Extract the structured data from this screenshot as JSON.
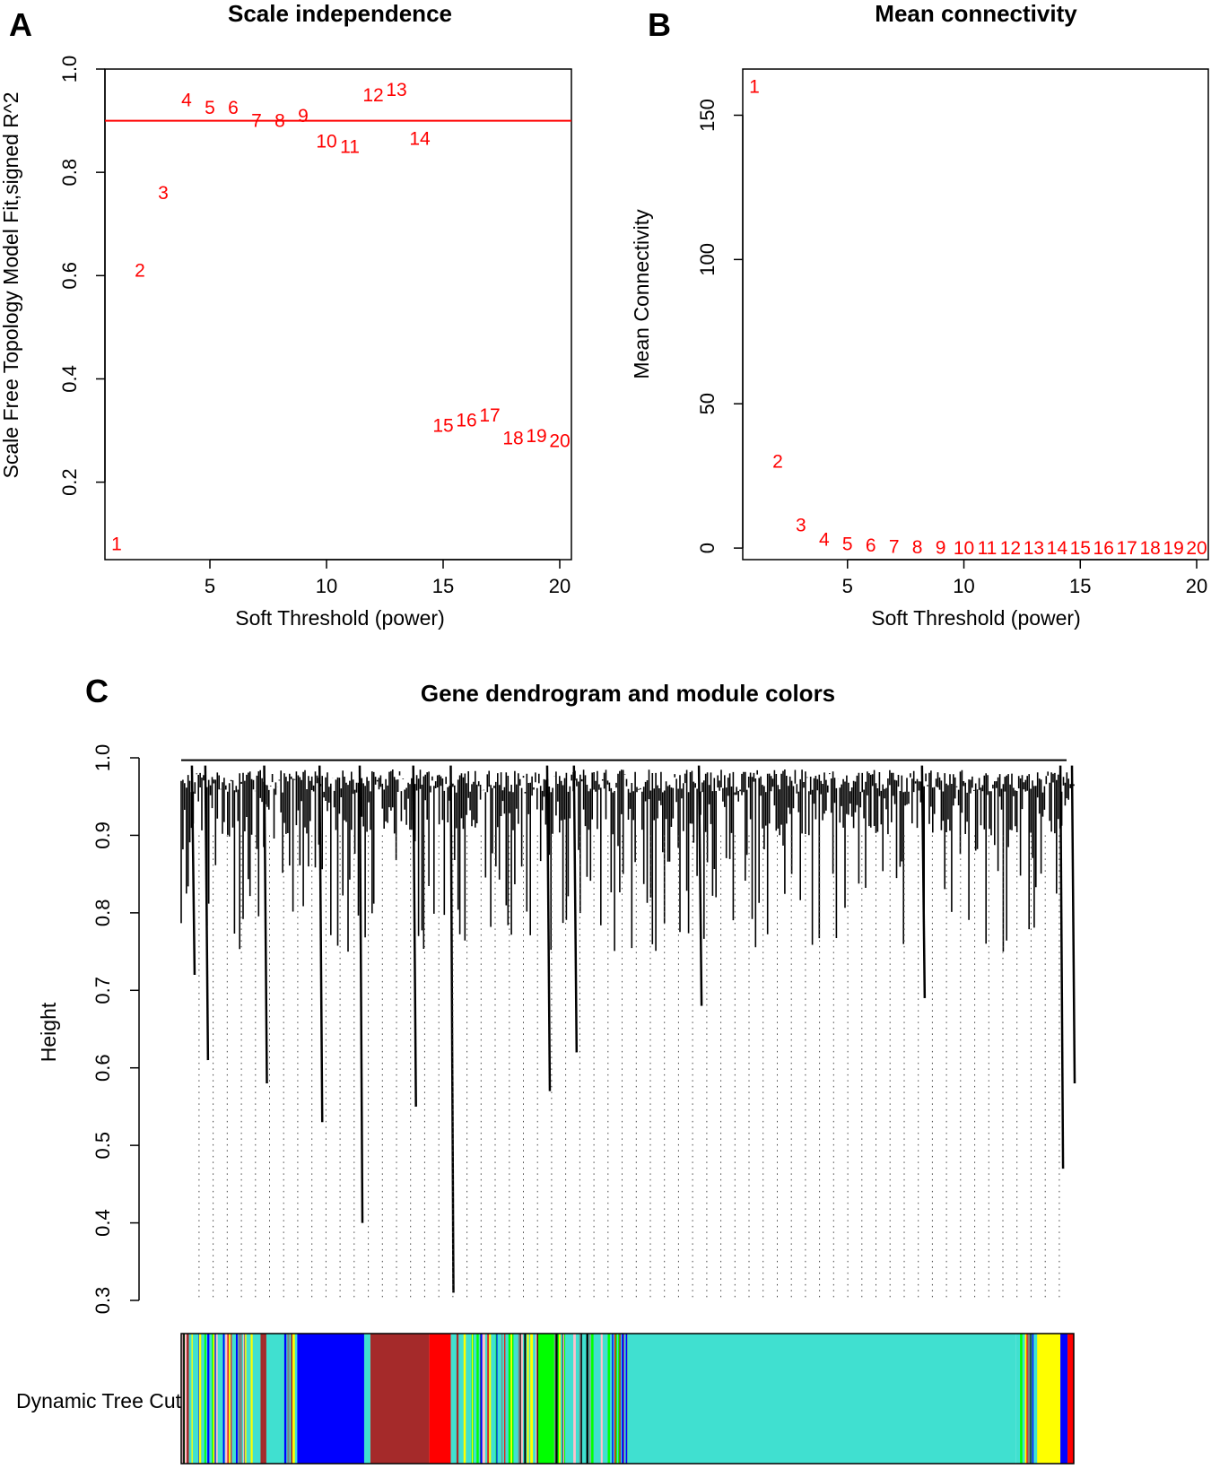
{
  "colors": {
    "points": "#ff0000",
    "cutoff_line": "#ff0000",
    "axis": "#000000"
  },
  "chart_data": [
    {
      "panel": "A",
      "type": "scatter",
      "title": "Scale independence",
      "xlabel": "Soft Threshold (power)",
      "ylabel": "Scale Free Topology Model Fit,signed R^2",
      "xlim": [
        0.5,
        20.5
      ],
      "ylim": [
        0.05,
        1.0
      ],
      "xticks": [
        5,
        10,
        15,
        20
      ],
      "yticks": [
        0.2,
        0.4,
        0.6,
        0.8,
        1.0
      ],
      "ytick_labels": [
        "0.2",
        "0.4",
        "0.6",
        "0.8",
        "1.0"
      ],
      "hline": 0.9,
      "points": [
        {
          "x": 1,
          "y": 0.08,
          "label": "1"
        },
        {
          "x": 2,
          "y": 0.61,
          "label": "2"
        },
        {
          "x": 3,
          "y": 0.76,
          "label": "3"
        },
        {
          "x": 4,
          "y": 0.94,
          "label": "4"
        },
        {
          "x": 5,
          "y": 0.925,
          "label": "5"
        },
        {
          "x": 6,
          "y": 0.925,
          "label": "6"
        },
        {
          "x": 7,
          "y": 0.9,
          "label": "7"
        },
        {
          "x": 8,
          "y": 0.9,
          "label": "8"
        },
        {
          "x": 9,
          "y": 0.91,
          "label": "9"
        },
        {
          "x": 10,
          "y": 0.86,
          "label": "10"
        },
        {
          "x": 11,
          "y": 0.85,
          "label": "11"
        },
        {
          "x": 12,
          "y": 0.95,
          "label": "12"
        },
        {
          "x": 13,
          "y": 0.96,
          "label": "13"
        },
        {
          "x": 14,
          "y": 0.865,
          "label": "14"
        },
        {
          "x": 15,
          "y": 0.31,
          "label": "15"
        },
        {
          "x": 16,
          "y": 0.32,
          "label": "16"
        },
        {
          "x": 17,
          "y": 0.33,
          "label": "17"
        },
        {
          "x": 18,
          "y": 0.285,
          "label": "18"
        },
        {
          "x": 19,
          "y": 0.29,
          "label": "19"
        },
        {
          "x": 20,
          "y": 0.28,
          "label": "20"
        }
      ]
    },
    {
      "panel": "B",
      "type": "scatter",
      "title": "Mean connectivity",
      "xlabel": "Soft Threshold (power)",
      "ylabel": "Mean Connectivity",
      "xlim": [
        0.5,
        20.5
      ],
      "ylim": [
        -4,
        166
      ],
      "xticks": [
        5,
        10,
        15,
        20
      ],
      "yticks": [
        0,
        50,
        100,
        150
      ],
      "ytick_labels": [
        "0",
        "50",
        "100",
        "150"
      ],
      "points": [
        {
          "x": 1,
          "y": 160,
          "label": "1"
        },
        {
          "x": 2,
          "y": 30,
          "label": "2"
        },
        {
          "x": 3,
          "y": 8,
          "label": "3"
        },
        {
          "x": 4,
          "y": 3,
          "label": "4"
        },
        {
          "x": 5,
          "y": 1.5,
          "label": "5"
        },
        {
          "x": 6,
          "y": 1,
          "label": "6"
        },
        {
          "x": 7,
          "y": 0.5,
          "label": "7"
        },
        {
          "x": 8,
          "y": 0.3,
          "label": "8"
        },
        {
          "x": 9,
          "y": 0.2,
          "label": "9"
        },
        {
          "x": 10,
          "y": 0.1,
          "label": "10"
        },
        {
          "x": 11,
          "y": 0.1,
          "label": "11"
        },
        {
          "x": 12,
          "y": 0.1,
          "label": "12"
        },
        {
          "x": 13,
          "y": 0.1,
          "label": "13"
        },
        {
          "x": 14,
          "y": 0.1,
          "label": "14"
        },
        {
          "x": 15,
          "y": 0.1,
          "label": "15"
        },
        {
          "x": 16,
          "y": 0.1,
          "label": "16"
        },
        {
          "x": 17,
          "y": 0.1,
          "label": "17"
        },
        {
          "x": 18,
          "y": 0.1,
          "label": "18"
        },
        {
          "x": 19,
          "y": 0.1,
          "label": "19"
        },
        {
          "x": 20,
          "y": 0.1,
          "label": "20"
        }
      ]
    },
    {
      "panel": "C",
      "type": "dendrogram",
      "title": "Gene dendrogram and module colors",
      "ylabel": "Height",
      "ylim": [
        0.3,
        1.0
      ],
      "yticks": [
        0.3,
        0.4,
        0.5,
        0.6,
        0.7,
        0.8,
        0.9,
        1.0
      ],
      "ytick_labels": [
        "0.3",
        "0.4",
        "0.5",
        "0.6",
        "0.7",
        "0.8",
        "0.9",
        "1.0"
      ],
      "color_bar_label": "Dynamic Tree Cut",
      "modules": [
        {
          "color": "#40e0d0",
          "start": 0.0,
          "end": 0.13,
          "speckled": true
        },
        {
          "color": "#0000ff",
          "start": 0.13,
          "end": 0.205
        },
        {
          "color": "#40e0d0",
          "start": 0.205,
          "end": 0.212
        },
        {
          "color": "#a52a2a",
          "start": 0.212,
          "end": 0.278
        },
        {
          "color": "#ff0000",
          "start": 0.278,
          "end": 0.302
        },
        {
          "color": "#40e0d0",
          "start": 0.302,
          "end": 0.4,
          "speckled": true
        },
        {
          "color": "#00ff00",
          "start": 0.4,
          "end": 0.418
        },
        {
          "color": "#40e0d0",
          "start": 0.418,
          "end": 0.5,
          "speckled": true
        },
        {
          "color": "#40e0d0",
          "start": 0.5,
          "end": 0.935
        },
        {
          "color": "#40e0d0",
          "start": 0.935,
          "end": 0.96,
          "speckled": true
        },
        {
          "color": "#ffff00",
          "start": 0.96,
          "end": 0.985
        },
        {
          "color": "#0000ff",
          "start": 0.985,
          "end": 0.993
        },
        {
          "color": "#ff0000",
          "start": 0.993,
          "end": 1.0
        }
      ],
      "deep_branches": [
        {
          "pos": 0.012,
          "low": 0.72
        },
        {
          "pos": 0.027,
          "low": 0.61
        },
        {
          "pos": 0.093,
          "low": 0.58
        },
        {
          "pos": 0.155,
          "low": 0.53
        },
        {
          "pos": 0.2,
          "low": 0.4
        },
        {
          "pos": 0.26,
          "low": 0.55
        },
        {
          "pos": 0.302,
          "low": 0.31
        },
        {
          "pos": 0.41,
          "low": 0.57
        },
        {
          "pos": 0.44,
          "low": 0.62
        },
        {
          "pos": 0.58,
          "low": 0.68
        },
        {
          "pos": 0.83,
          "low": 0.69
        },
        {
          "pos": 0.985,
          "low": 0.47
        },
        {
          "pos": 0.998,
          "low": 0.58
        }
      ]
    }
  ]
}
